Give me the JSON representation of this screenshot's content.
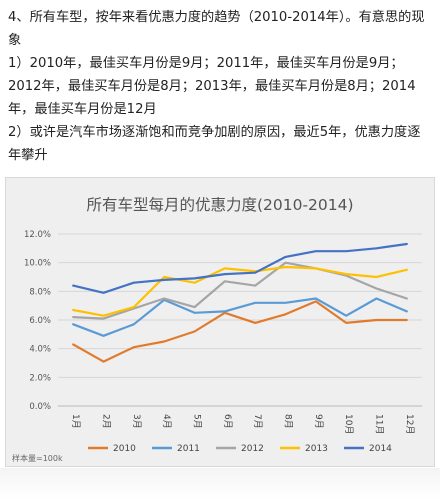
{
  "article": {
    "lines": [
      "4、所有车型，按年来看优惠力度的趋势（2010-2014年）。有意思的现象",
      "1）2010年，最佳买车月份是9月；2011年，最佳买车月份是9月；2012年，最佳买车月份是8月；2013年，最佳买车月份是8月；2014年，最佳买车月份是12月",
      "2）或许是汽车市场逐渐饱和而竞争加剧的原因，最近5年，优惠力度逐年攀升"
    ]
  },
  "chart_data": {
    "type": "line",
    "title": "所有车型每月的优惠力度(2010-2014)",
    "note": "样本量=100k",
    "categories": [
      "1月",
      "2月",
      "3月",
      "4月",
      "5月",
      "6月",
      "7月",
      "8月",
      "9月",
      "10月",
      "11月",
      "12月"
    ],
    "ylim": [
      0,
      0.12
    ],
    "yticks": [
      0,
      0.02,
      0.04,
      0.06,
      0.08,
      0.1,
      0.12
    ],
    "ytick_labels": [
      "0.0%",
      "2.0%",
      "4.0%",
      "6.0%",
      "8.0%",
      "10.0%",
      "12.0%"
    ],
    "grid": true,
    "legend_position": "bottom",
    "series": [
      {
        "name": "2010",
        "color": "#e07b2e",
        "values": [
          0.043,
          0.031,
          0.041,
          0.045,
          0.052,
          0.065,
          0.058,
          0.064,
          0.073,
          0.058,
          0.06,
          0.06
        ]
      },
      {
        "name": "2011",
        "color": "#5b9bd5",
        "values": [
          0.057,
          0.049,
          0.057,
          0.074,
          0.065,
          0.066,
          0.072,
          0.072,
          0.075,
          0.063,
          0.075,
          0.066
        ]
      },
      {
        "name": "2012",
        "color": "#a5a5a5",
        "values": [
          0.062,
          0.061,
          0.068,
          0.075,
          0.069,
          0.087,
          0.084,
          0.1,
          0.096,
          0.091,
          0.082,
          0.075
        ]
      },
      {
        "name": "2013",
        "color": "#ffc000",
        "values": [
          0.067,
          0.063,
          0.069,
          0.09,
          0.086,
          0.096,
          0.094,
          0.097,
          0.096,
          0.092,
          0.09,
          0.095
        ]
      },
      {
        "name": "2014",
        "color": "#4472c4",
        "values": [
          0.084,
          0.079,
          0.086,
          0.088,
          0.089,
          0.092,
          0.093,
          0.104,
          0.108,
          0.108,
          0.11,
          0.113
        ]
      }
    ]
  }
}
